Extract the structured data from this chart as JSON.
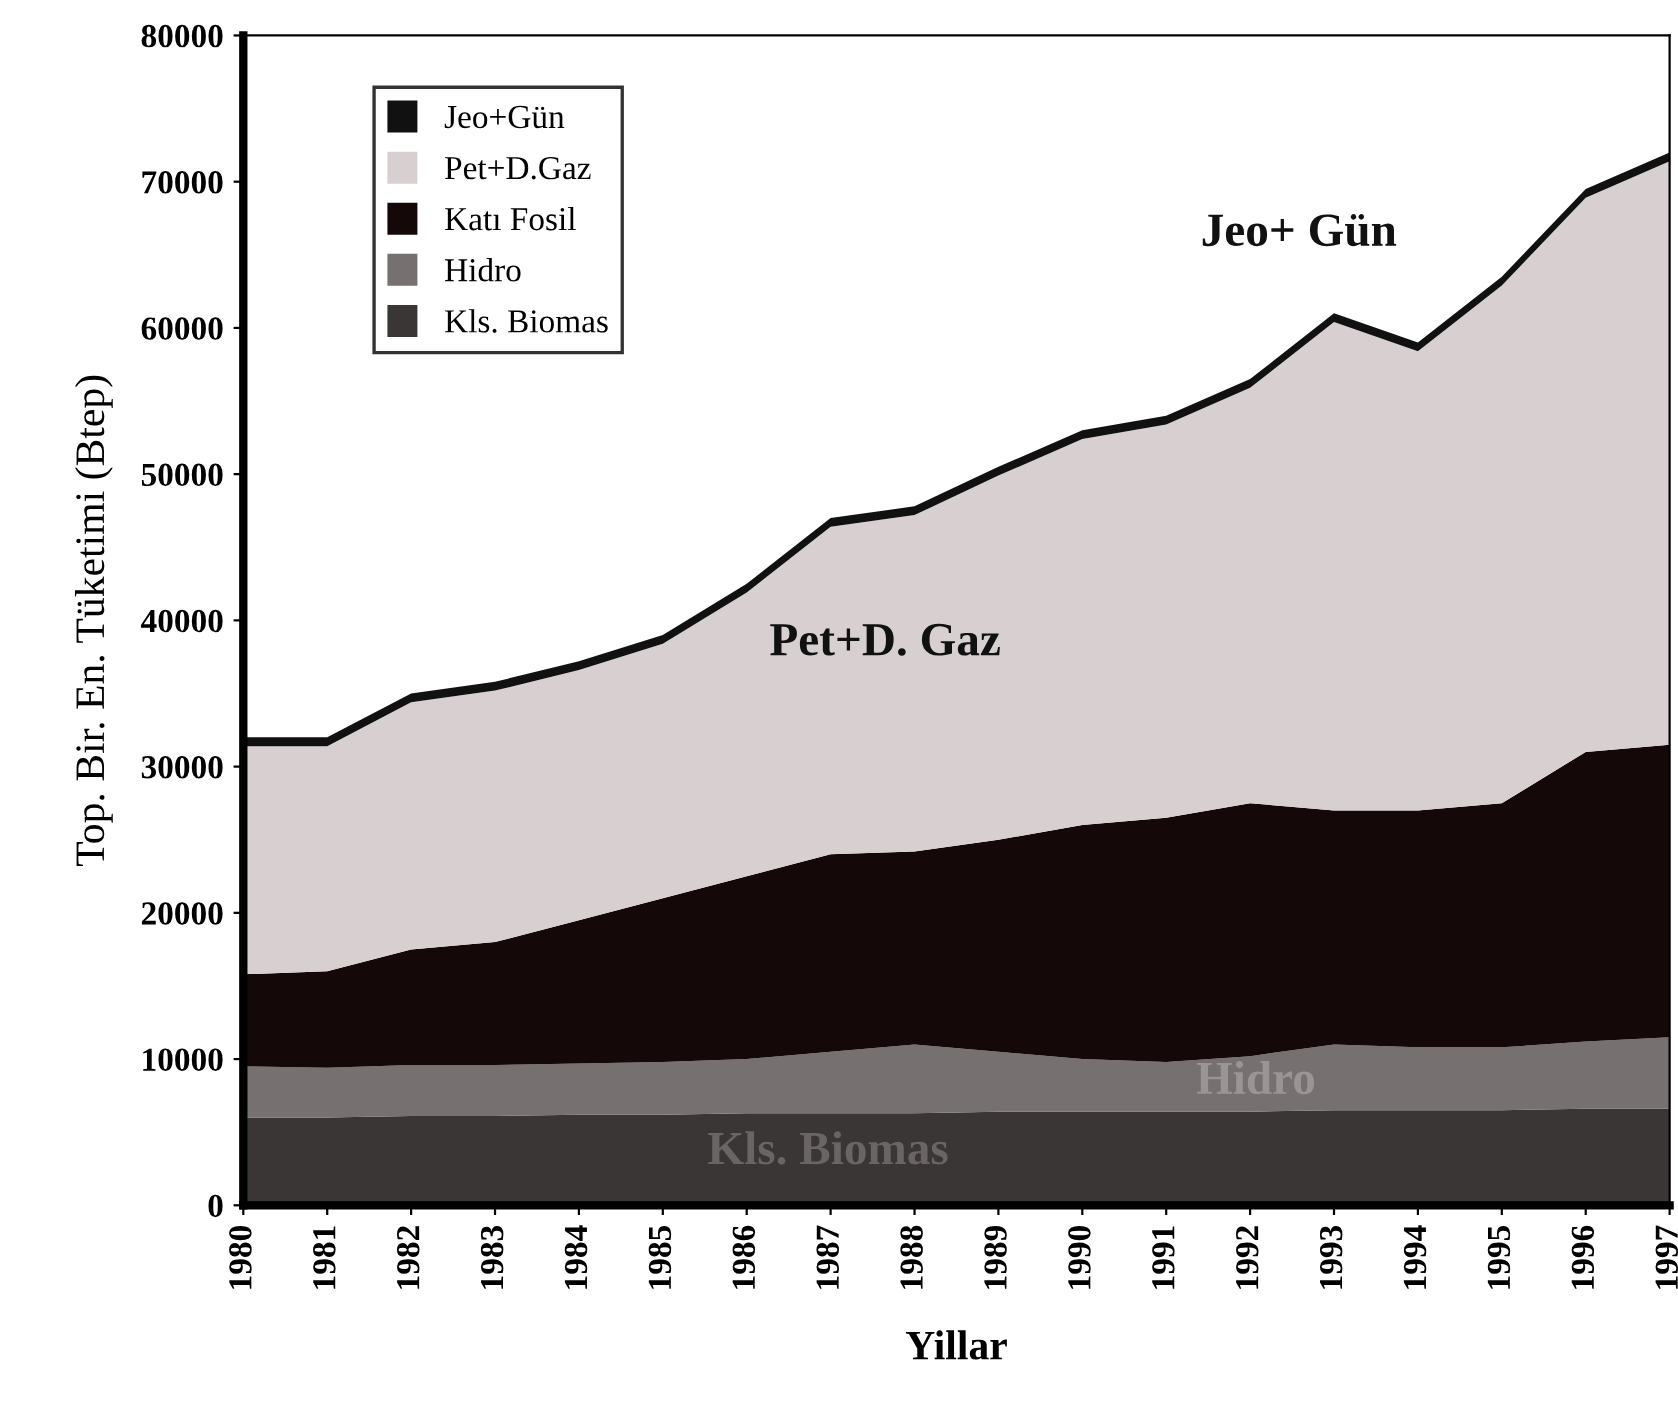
{
  "chart_data": {
    "type": "area",
    "stacked": true,
    "ylabel": "Top. Bir. En. Tüketimi (Btep)",
    "xlabel": "Yillar",
    "categories": [
      "1980",
      "1981",
      "1982",
      "1983",
      "1984",
      "1985",
      "1986",
      "1987",
      "1988",
      "1989",
      "1990",
      "1991",
      "1992",
      "1993",
      "1994",
      "1995",
      "1996",
      "1997"
    ],
    "series": [
      {
        "name": "Kls. Biomas",
        "color": "#3a3636",
        "values": [
          6000,
          6000,
          6100,
          6100,
          6200,
          6200,
          6300,
          6300,
          6300,
          6400,
          6400,
          6400,
          6400,
          6500,
          6500,
          6500,
          6600,
          6600
        ]
      },
      {
        "name": "Hidro",
        "color": "#767070",
        "values": [
          3500,
          3400,
          3500,
          3500,
          3500,
          3600,
          3700,
          4200,
          4700,
          4100,
          3600,
          3400,
          3800,
          4500,
          4300,
          4300,
          4600,
          4900
        ]
      },
      {
        "name": "Katı Fosil",
        "color": "#140808",
        "values": [
          6300,
          6600,
          7900,
          8400,
          9800,
          11200,
          12500,
          13500,
          13200,
          14500,
          16000,
          16700,
          17300,
          16000,
          16200,
          16700,
          19800,
          20000
        ]
      },
      {
        "name": "Pet+D.Gaz",
        "color": "#d8d0d0",
        "values": [
          15600,
          15400,
          16900,
          17200,
          17100,
          17400,
          19400,
          22400,
          23000,
          24900,
          26400,
          26900,
          28400,
          33400,
          31400,
          35400,
          37900,
          39900
        ]
      },
      {
        "name": "Jeo+Gün",
        "color": "#111111",
        "values": [
          600,
          600,
          600,
          600,
          600,
          600,
          600,
          600,
          600,
          600,
          600,
          600,
          600,
          600,
          600,
          600,
          600,
          600
        ]
      }
    ],
    "ylim": [
      0,
      80000
    ],
    "yticks": [
      0,
      10000,
      20000,
      30000,
      40000,
      50000,
      60000,
      70000,
      80000
    ],
    "annotations": [
      "Jeo+ Gün",
      "Pet+D. Gaz",
      "Hidro",
      "Kls. Biomas"
    ],
    "legend": "top left",
    "grid": false
  }
}
